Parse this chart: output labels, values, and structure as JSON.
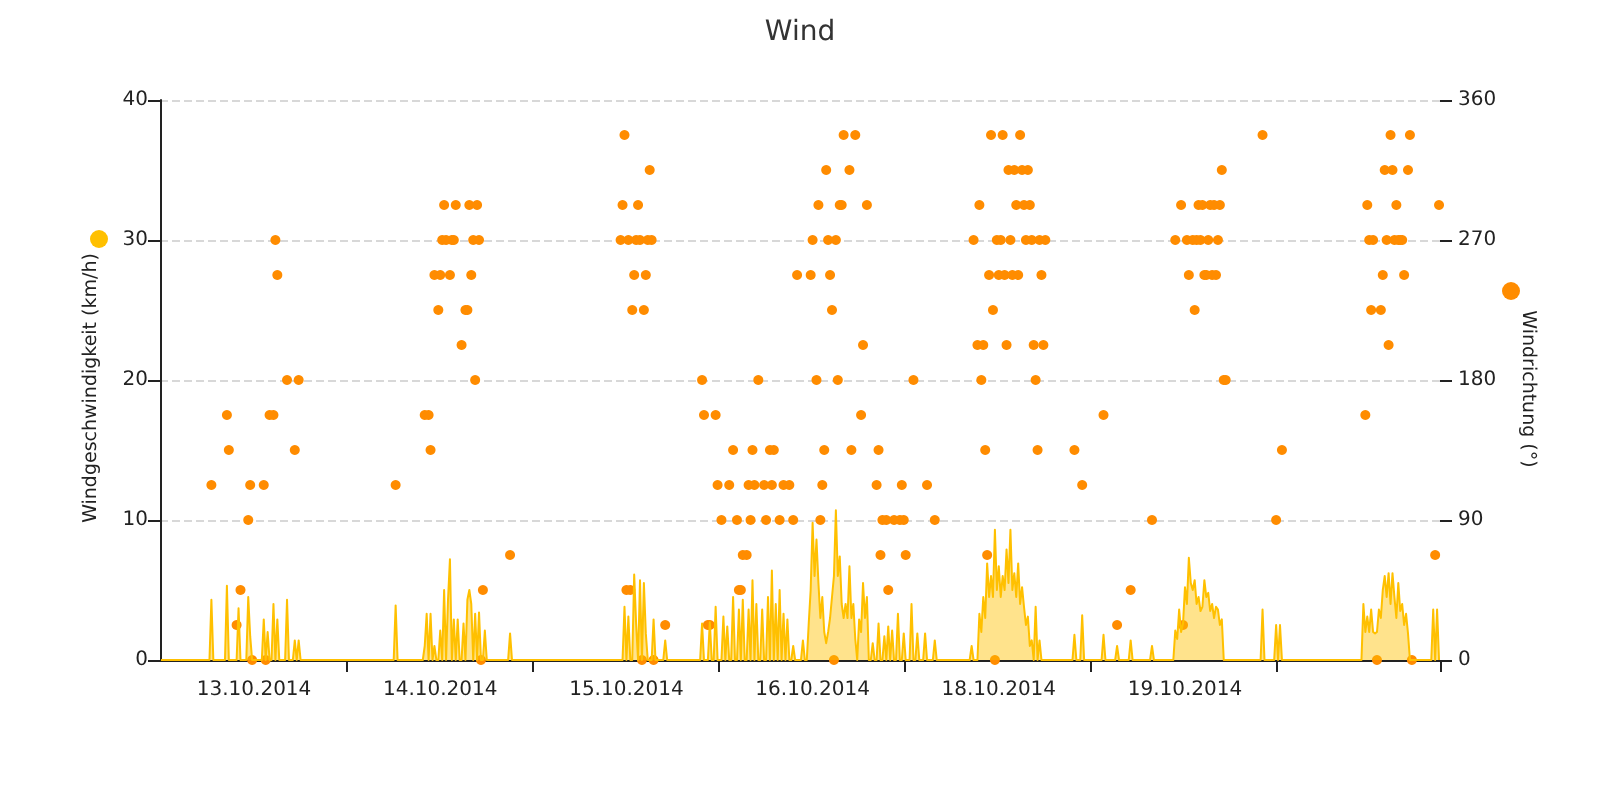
{
  "chart_data": {
    "type": "area",
    "title": "Wind",
    "ylabel": "Windgeschwindigkeit (km/h)",
    "y2label": "Windrichtung (°)",
    "categories": [
      null,
      null,
      null,
      null,
      null,
      null,
      null,
      null,
      null,
      null,
      null,
      null,
      null,
      null,
      null,
      null,
      null,
      null,
      null,
      null,
      null,
      null,
      null,
      null,
      null,
      null,
      null,
      null,
      null,
      null,
      null,
      null,
      null,
      null,
      null,
      null,
      null,
      null,
      null,
      null,
      null,
      null,
      null,
      null,
      null,
      null,
      null,
      null,
      "13.10.2014",
      null,
      null,
      null,
      null,
      null,
      null,
      null,
      null,
      null,
      null,
      null,
      null,
      null,
      null,
      null,
      null,
      null,
      null,
      null,
      null,
      null,
      null,
      null,
      null,
      null,
      null,
      null,
      null,
      null,
      null,
      null,
      null,
      null,
      null,
      null,
      null,
      null,
      null,
      null,
      null,
      null,
      null,
      null,
      null,
      null,
      null,
      null,
      null,
      null,
      null,
      null,
      null,
      null,
      null,
      null,
      null,
      null,
      null,
      null,
      null,
      null,
      null,
      null,
      null,
      null,
      null,
      null,
      null,
      null,
      null,
      null,
      null,
      null,
      null,
      null,
      null,
      null,
      null,
      null,
      null,
      null,
      null,
      null,
      null,
      null,
      null,
      null,
      null,
      null,
      null,
      null,
      null,
      null,
      null,
      null,
      "14.10.2014",
      null,
      null,
      null,
      null,
      null,
      null,
      null,
      null,
      null,
      null,
      null,
      null,
      null,
      null,
      null,
      null,
      null,
      null,
      null,
      null,
      null,
      null,
      null,
      null,
      null,
      null,
      null,
      null,
      null,
      null,
      null,
      null,
      null,
      null,
      null,
      null,
      null,
      null,
      null,
      null,
      null,
      null,
      null,
      null,
      null,
      null,
      null,
      null,
      null,
      null,
      null,
      null,
      null,
      null,
      null,
      null,
      null,
      null,
      null,
      null,
      null,
      null,
      null,
      null,
      null,
      null,
      null,
      null,
      null,
      null,
      null,
      null,
      null,
      null,
      null,
      null,
      null,
      null,
      null,
      null,
      null,
      null,
      null,
      null,
      null,
      null,
      null,
      null,
      null,
      null,
      null,
      null,
      null,
      null,
      null,
      "15.10.2014",
      null,
      null,
      null,
      null,
      null,
      null,
      null,
      null,
      null,
      null,
      null,
      null,
      null,
      null,
      null,
      null,
      null,
      null,
      null,
      null,
      null,
      null,
      null,
      null,
      null,
      null,
      null,
      null,
      null,
      null,
      null,
      null,
      null,
      null,
      null,
      null,
      null,
      null,
      null,
      null,
      null,
      null,
      null,
      null,
      null,
      null,
      null,
      null,
      null,
      null,
      null,
      null,
      null,
      null,
      null,
      null,
      null,
      null,
      null,
      null,
      null,
      null,
      null,
      null,
      null,
      null,
      null,
      null,
      null,
      null,
      null,
      null,
      null,
      null,
      null,
      null,
      null,
      null,
      null,
      null,
      null,
      null,
      null,
      null,
      null,
      null,
      null,
      null,
      null,
      null,
      null,
      null,
      null,
      null,
      null,
      "16.10.2014",
      null,
      null,
      null,
      null,
      null,
      null,
      null,
      null,
      null,
      null,
      null,
      null,
      null,
      null,
      null,
      null,
      null,
      null,
      null,
      null,
      null,
      null,
      null,
      null,
      null,
      null,
      null,
      null,
      null,
      null,
      null,
      null,
      null,
      null,
      null,
      null,
      null,
      null,
      null,
      null,
      null,
      null,
      null,
      null,
      null,
      null,
      null,
      null,
      null,
      null,
      null,
      null,
      null,
      null,
      null,
      null,
      null,
      null,
      null,
      null,
      null,
      null,
      null,
      null,
      null,
      null,
      null,
      null,
      null,
      null,
      null,
      null,
      null,
      null,
      null,
      null,
      null,
      null,
      null,
      null,
      null,
      null,
      null,
      null,
      null,
      null,
      null,
      null,
      null,
      null,
      null,
      null,
      null,
      null,
      null,
      "18.10.2014",
      null,
      null,
      null,
      null,
      null,
      null,
      null,
      null,
      null,
      null,
      null,
      null,
      null,
      null,
      null,
      null,
      null,
      null,
      null,
      null,
      null,
      null,
      null,
      null,
      null,
      null,
      null,
      null,
      null,
      null,
      null,
      null,
      null,
      null,
      null,
      null,
      null,
      null,
      null,
      null,
      null,
      null,
      null,
      null,
      null,
      null,
      null,
      null,
      null,
      null,
      null,
      null,
      null,
      null,
      null,
      null,
      null,
      null,
      null,
      null,
      null,
      null,
      null,
      null,
      null,
      null,
      null,
      null,
      null,
      null,
      null,
      null,
      null,
      null,
      null,
      null,
      null,
      null,
      null,
      null,
      null,
      null,
      null,
      null,
      null,
      null,
      null,
      null,
      null,
      null,
      null,
      null,
      null,
      null,
      null,
      "19.10.2014",
      null,
      null,
      null,
      null,
      null,
      null,
      null,
      null,
      null,
      null,
      null,
      null,
      null,
      null,
      null,
      null,
      null,
      null,
      null,
      null,
      null,
      null,
      null,
      null,
      null,
      null,
      null,
      null,
      null,
      null,
      null,
      null,
      null,
      null,
      null,
      null,
      null,
      null,
      null,
      null,
      null,
      null,
      null,
      null,
      null,
      null,
      null,
      null,
      null,
      null,
      null,
      null,
      null,
      null,
      null,
      null,
      null,
      null,
      null,
      null,
      null,
      null,
      null,
      null,
      null,
      null,
      null,
      null,
      null,
      null,
      null,
      null,
      null,
      null,
      null,
      null,
      null,
      null,
      null,
      null,
      null,
      null,
      null,
      null,
      null,
      null,
      null,
      null,
      null,
      null,
      null,
      null,
      null,
      null,
      null,
      null,
      null,
      null,
      null,
      null,
      null,
      null,
      null,
      null,
      null,
      null,
      null,
      null,
      null,
      null,
      null,
      null,
      null,
      null,
      null,
      null,
      null,
      null,
      null,
      null,
      null,
      null,
      null,
      null,
      null,
      null,
      null,
      null,
      null,
      null,
      null
    ],
    "ylim": [
      0,
      40
    ],
    "yticks": [
      0,
      10,
      20,
      30,
      40
    ],
    "y2lim": [
      0,
      360
    ],
    "y2ticks": [
      0,
      90,
      180,
      270,
      360
    ],
    "grid": "y",
    "series": [
      {
        "color": "#ffc000",
        "values": [
          0,
          0,
          0,
          0,
          0,
          0,
          0,
          0,
          0,
          0,
          0,
          0,
          0,
          0,
          0,
          0,
          0,
          0,
          0,
          0,
          0,
          0,
          0,
          0,
          0,
          0,
          4.3,
          0,
          0,
          0,
          0,
          0,
          0,
          0,
          5.3,
          0,
          0,
          0,
          0,
          0,
          3.7,
          0,
          0,
          0,
          0,
          4.5,
          1.7,
          0,
          0,
          0,
          0,
          0,
          0,
          2.9,
          0,
          2.0,
          0,
          0,
          4.0,
          0,
          2.9,
          0,
          0,
          0,
          0,
          4.3,
          0,
          0,
          0,
          1.4,
          0,
          1.4,
          0,
          0,
          0,
          0,
          0,
          0,
          0,
          0,
          0,
          0,
          0,
          0,
          0,
          0,
          0,
          0,
          0,
          0,
          0,
          0,
          0,
          0,
          0,
          0,
          0,
          0,
          0,
          0,
          0,
          0,
          0,
          0,
          0,
          0,
          0,
          0,
          0,
          0,
          0,
          0,
          0,
          0,
          0,
          0,
          0,
          0,
          0,
          0,
          0,
          3.9,
          0,
          0,
          0,
          0,
          0,
          0,
          0,
          0,
          0,
          0,
          0,
          0,
          0,
          0,
          1.0,
          3.3,
          0,
          3.3,
          0,
          1.0,
          0,
          0,
          2.1,
          0,
          5.0,
          0,
          4.3,
          7.2,
          0,
          2.9,
          0,
          2.9,
          0,
          0,
          2.6,
          0,
          4.3,
          5.0,
          4.0,
          0,
          3.3,
          0,
          3.4,
          0,
          0,
          2.1,
          0,
          0,
          0,
          0,
          0,
          0,
          0,
          0,
          0,
          0,
          0,
          0,
          1.9,
          0,
          0,
          0,
          0,
          0,
          0,
          0,
          0,
          0,
          0,
          0,
          0,
          0,
          0,
          0,
          0,
          0,
          0,
          0,
          0,
          0,
          0,
          0,
          0,
          0,
          0,
          0,
          0,
          0,
          0,
          0,
          0,
          0,
          0,
          0,
          0,
          0,
          0,
          0,
          0,
          0,
          0,
          0,
          0,
          0,
          0,
          0,
          0,
          0,
          0,
          0,
          0,
          0,
          0,
          0,
          0,
          0,
          0,
          3.8,
          0,
          3.1,
          0,
          0,
          6.1,
          2.6,
          0,
          5.7,
          0,
          5.5,
          1.9,
          0,
          0,
          0,
          2.9,
          0,
          0,
          0,
          0,
          0,
          1.4,
          0,
          0,
          0,
          0,
          0,
          0,
          0,
          0,
          0,
          0,
          0,
          0,
          0,
          0,
          0,
          0,
          0,
          0,
          2.6,
          0,
          0,
          0,
          2.7,
          0,
          0,
          3.8,
          0,
          0,
          0,
          3.1,
          0,
          2.4,
          0,
          0,
          4.5,
          0,
          0,
          3.6,
          0,
          4.3,
          0,
          0,
          3.6,
          0,
          5.7,
          0,
          4.0,
          0,
          0,
          3.6,
          0,
          0,
          4.5,
          0,
          6.4,
          0,
          4.0,
          0,
          5.0,
          0,
          3.3,
          0,
          2.9,
          0,
          0,
          1.0,
          0,
          0,
          0,
          0,
          1.4,
          0,
          0,
          2.6,
          5.0,
          9.8,
          6.0,
          8.6,
          5.5,
          3.0,
          4.5,
          2.0,
          1.2,
          2.0,
          3.0,
          4.5,
          6.0,
          10.7,
          6.0,
          7.4,
          4.0,
          3.0,
          4.0,
          3.0,
          6.7,
          3.0,
          4.0,
          1.5,
          0,
          2.9,
          2.0,
          5.5,
          3.0,
          4.5,
          0,
          0,
          1.2,
          0,
          0,
          2.6,
          0,
          0,
          1.7,
          0,
          2.4,
          0,
          2.1,
          0,
          0,
          3.3,
          0,
          0,
          1.9,
          0,
          0,
          0,
          4.0,
          0,
          0,
          1.9,
          0,
          0,
          0,
          1.9,
          0,
          0,
          0,
          0,
          1.4,
          0,
          0,
          0,
          0,
          0,
          0,
          0,
          0,
          0,
          0,
          0,
          0,
          0,
          0,
          0,
          0,
          0,
          0,
          1.0,
          0,
          0,
          0,
          3.3,
          2.0,
          4.5,
          3.0,
          6.9,
          4.5,
          6.0,
          4.5,
          9.3,
          5.0,
          6.7,
          4.5,
          6.0,
          5.0,
          7.9,
          5.5,
          9.3,
          5.0,
          6.2,
          4.5,
          6.9,
          4.0,
          5.2,
          3.8,
          2.5,
          3.1,
          1.0,
          1.4,
          0,
          3.8,
          0,
          1.4,
          0,
          0,
          0,
          0,
          0,
          0,
          0,
          0,
          0,
          0,
          0,
          0,
          0,
          0,
          0,
          0,
          0,
          1.8,
          0,
          0,
          0,
          3.2,
          0,
          0,
          0,
          0,
          0,
          0,
          0,
          0,
          0,
          0,
          1.8,
          0,
          0,
          0,
          0,
          0,
          0,
          1.0,
          0,
          0,
          0,
          0,
          0,
          0,
          1.4,
          0,
          0,
          0,
          0,
          0,
          0,
          0,
          0,
          0,
          0,
          1.0,
          0,
          0,
          0,
          0,
          0,
          0,
          0,
          0,
          0,
          0,
          0,
          2.1,
          1.5,
          3.6,
          2.0,
          2.6,
          5.2,
          4.0,
          7.3,
          5.5,
          5.0,
          5.7,
          4.0,
          4.5,
          3.5,
          3.8,
          5.7,
          4.5,
          4.8,
          3.5,
          4.0,
          3.0,
          3.8,
          3.6,
          2.5,
          2.9,
          0,
          0,
          0,
          0,
          0,
          0,
          0,
          0,
          0,
          0,
          0,
          0,
          0,
          0,
          0,
          0,
          0,
          0,
          0,
          0,
          3.6,
          0,
          0,
          0,
          0,
          0,
          0,
          2.5,
          0,
          2.5,
          0,
          0,
          0,
          0,
          0,
          0,
          0,
          0,
          0,
          0,
          0,
          0,
          0,
          0,
          0,
          0,
          0,
          0,
          0,
          0,
          0,
          0,
          0,
          0,
          0,
          0,
          0,
          0,
          0,
          0,
          0,
          0,
          0,
          0,
          0,
          0,
          0,
          0,
          0,
          0,
          0,
          0,
          4.0,
          2.0,
          3.1,
          2.0,
          3.6,
          2.0,
          1.9,
          2.0,
          3.6,
          3.0,
          5.0,
          6.0,
          4.5,
          6.2,
          4.0,
          6.2,
          4.5,
          3.0,
          5.5,
          3.5,
          4.0,
          2.5,
          3.3,
          1.9,
          0,
          0,
          0,
          0,
          0,
          0,
          0,
          0,
          0,
          0,
          0,
          0,
          3.6,
          0,
          3.6,
          0
        ]
      },
      {
        "type": "scatter",
        "axis": "y2",
        "color": "#ff8c00",
        "marker": "circle",
        "values": [
          null,
          null,
          null,
          null,
          null,
          null,
          null,
          null,
          null,
          null,
          null,
          null,
          null,
          null,
          null,
          null,
          null,
          null,
          null,
          null,
          null,
          null,
          null,
          null,
          null,
          null,
          112.5,
          null,
          null,
          null,
          null,
          null,
          null,
          null,
          157.5,
          135,
          null,
          null,
          null,
          22.5,
          null,
          45,
          null,
          null,
          null,
          90,
          112.5,
          0,
          null,
          null,
          null,
          null,
          null,
          112.5,
          0,
          null,
          157.5,
          null,
          157.5,
          270,
          247.5,
          null,
          null,
          null,
          null,
          180,
          null,
          null,
          null,
          135,
          null,
          180,
          null,
          null,
          null,
          null,
          null,
          null,
          null,
          null,
          null,
          null,
          null,
          null,
          null,
          null,
          null,
          null,
          null,
          null,
          null,
          null,
          null,
          null,
          null,
          null,
          null,
          null,
          null,
          null,
          null,
          null,
          null,
          null,
          null,
          null,
          null,
          null,
          null,
          null,
          null,
          null,
          null,
          null,
          null,
          null,
          null,
          null,
          null,
          null,
          null,
          112.5,
          null,
          null,
          null,
          null,
          null,
          null,
          null,
          null,
          null,
          null,
          null,
          null,
          null,
          null,
          157.5,
          null,
          157.5,
          135,
          null,
          247.5,
          null,
          225,
          247.5,
          270,
          292.5,
          270,
          null,
          247.5,
          270,
          270,
          292.5,
          null,
          null,
          202.5,
          null,
          225,
          225,
          292.5,
          247.5,
          270,
          180,
          292.5,
          270,
          0,
          45,
          null,
          null,
          null,
          null,
          null,
          null,
          null,
          null,
          null,
          null,
          null,
          null,
          null,
          67.5,
          null,
          null,
          null,
          null,
          null,
          null,
          null,
          null,
          null,
          null,
          null,
          null,
          null,
          null,
          null,
          null,
          null,
          null,
          null,
          null,
          null,
          null,
          null,
          null,
          null,
          null,
          null,
          null,
          null,
          null,
          null,
          null,
          null,
          null,
          null,
          null,
          null,
          null,
          null,
          null,
          null,
          null,
          null,
          null,
          null,
          null,
          null,
          null,
          null,
          null,
          null,
          null,
          null,
          null,
          null,
          null,
          270,
          292.5,
          337.5,
          45,
          270,
          45,
          225,
          247.5,
          270,
          292.5,
          270,
          0,
          225,
          247.5,
          270,
          315,
          270,
          0,
          null,
          null,
          null,
          null,
          null,
          22.5,
          null,
          null,
          null,
          null,
          null,
          null,
          null,
          null,
          null,
          null,
          null,
          null,
          null,
          null,
          null,
          null,
          null,
          null,
          180,
          157.5,
          null,
          22.5,
          22.5,
          null,
          null,
          157.5,
          112.5,
          null,
          90,
          null,
          null,
          null,
          112.5,
          null,
          135,
          null,
          90,
          45,
          45,
          67.5,
          null,
          67.5,
          112.5,
          90,
          135,
          112.5,
          null,
          180,
          null,
          null,
          112.5,
          90,
          null,
          135,
          112.5,
          135,
          null,
          null,
          90,
          null,
          112.5,
          null,
          null,
          112.5,
          null,
          90,
          null,
          247.5,
          null,
          null,
          null,
          null,
          null,
          null,
          247.5,
          270,
          null,
          180,
          292.5,
          90,
          112.5,
          135,
          315,
          270,
          247.5,
          225,
          0,
          270,
          180,
          292.5,
          292.5,
          337.5,
          null,
          null,
          315,
          135,
          null,
          337.5,
          null,
          null,
          157.5,
          202.5,
          null,
          292.5,
          null,
          null,
          null,
          null,
          112.5,
          135,
          67.5,
          90,
          null,
          90,
          45,
          null,
          null,
          90,
          null,
          null,
          90,
          112.5,
          90,
          67.5,
          null,
          null,
          null,
          180,
          null,
          null,
          null,
          null,
          null,
          null,
          112.5,
          null,
          null,
          null,
          90,
          null,
          null,
          null,
          null,
          null,
          null,
          null,
          null,
          null,
          null,
          null,
          null,
          null,
          null,
          null,
          null,
          null,
          null,
          null,
          270,
          null,
          202.5,
          292.5,
          180,
          202.5,
          135,
          67.5,
          247.5,
          337.5,
          225,
          0,
          270,
          247.5,
          270,
          337.5,
          247.5,
          202.5,
          315,
          270,
          247.5,
          315,
          292.5,
          247.5,
          337.5,
          315,
          292.5,
          270,
          315,
          292.5,
          270,
          202.5,
          180,
          135,
          270,
          247.5,
          202.5,
          270,
          null,
          null,
          null,
          null,
          null,
          null,
          null,
          null,
          null,
          null,
          null,
          null,
          null,
          null,
          135,
          null,
          null,
          null,
          112.5,
          null,
          null,
          null,
          null,
          null,
          null,
          null,
          null,
          null,
          null,
          157.5,
          null,
          null,
          null,
          null,
          null,
          null,
          22.5,
          null,
          null,
          null,
          null,
          null,
          null,
          45,
          null,
          null,
          null,
          null,
          null,
          null,
          null,
          null,
          null,
          null,
          90,
          null,
          null,
          null,
          null,
          null,
          null,
          null,
          null,
          null,
          null,
          null,
          270,
          null,
          null,
          292.5,
          22.5,
          null,
          270,
          247.5,
          null,
          270,
          225,
          270,
          292.5,
          270,
          292.5,
          247.5,
          247.5,
          270,
          292.5,
          247.5,
          292.5,
          247.5,
          270,
          292.5,
          315,
          180,
          180,
          null,
          null,
          null,
          null,
          null,
          null,
          null,
          null,
          null,
          null,
          null,
          null,
          null,
          null,
          null,
          null,
          null,
          null,
          337.5,
          null,
          null,
          null,
          null,
          null,
          null,
          90,
          null,
          null,
          135,
          null,
          null,
          null,
          null,
          null,
          null,
          null,
          null,
          null,
          null,
          null,
          null,
          null,
          null,
          null,
          null,
          null,
          null,
          null,
          null,
          null,
          null,
          null,
          null,
          null,
          null,
          null,
          null,
          null,
          null,
          null,
          null,
          null,
          null,
          null,
          null,
          null,
          null,
          null,
          null,
          null,
          null,
          157.5,
          292.5,
          270,
          225,
          270,
          null,
          0,
          null,
          225,
          247.5,
          315,
          270,
          202.5,
          337.5,
          315,
          270,
          292.5,
          270,
          270,
          270,
          247.5,
          null,
          315,
          337.5,
          0,
          null,
          null,
          null,
          null,
          null,
          null,
          null,
          null,
          null,
          null,
          null,
          67.5,
          null,
          292.5
        ]
      }
    ]
  }
}
